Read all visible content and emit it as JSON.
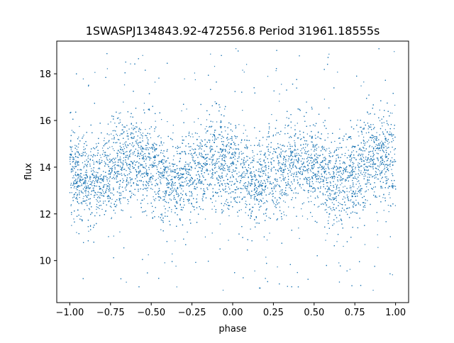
{
  "chart_data": {
    "type": "scatter",
    "title": "1SWASPJ134843.92-472556.8 Period 31961.18555s",
    "xlabel": "phase",
    "ylabel": "flux",
    "xlim": [
      -1.08,
      1.08
    ],
    "ylim": [
      8.2,
      19.4
    ],
    "xticks": [
      -1.0,
      -0.75,
      -0.5,
      -0.25,
      0.0,
      0.25,
      0.5,
      0.75,
      1.0
    ],
    "xtick_labels": [
      "−1.00",
      "−0.75",
      "−0.50",
      "−0.25",
      "0.00",
      "0.25",
      "0.50",
      "0.75",
      "1.00"
    ],
    "yticks": [
      10,
      12,
      14,
      16,
      18
    ],
    "ytick_labels": [
      "10",
      "12",
      "14",
      "16",
      "18"
    ],
    "grid": false,
    "series": [
      {
        "color": "#1f77b4",
        "x_range": [
          -1.0,
          1.0
        ],
        "y_range": [
          8.7,
          19.1
        ],
        "trend": {
          "phase": [
            -1.0,
            -0.875,
            -0.75,
            -0.625,
            -0.5,
            -0.375,
            -0.25,
            -0.125,
            0.0,
            0.125,
            0.25,
            0.375,
            0.5,
            0.625,
            0.75,
            0.875,
            1.0
          ],
          "center": [
            13.7,
            13.4,
            13.8,
            14.4,
            14.0,
            13.3,
            13.7,
            14.4,
            14.0,
            13.3,
            13.7,
            14.4,
            14.0,
            13.3,
            13.7,
            14.4,
            14.0
          ],
          "core_half_width": [
            0.95,
            0.95,
            0.95,
            0.95,
            0.95,
            0.95,
            0.95,
            0.95,
            0.95,
            0.95,
            0.95,
            0.95,
            0.95,
            0.95,
            0.95,
            0.95,
            0.95
          ]
        },
        "outlier_fraction": 0.06
      }
    ]
  }
}
